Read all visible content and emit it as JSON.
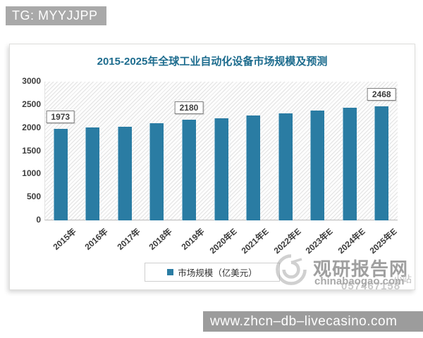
{
  "badge": {
    "text": "TG: MYYJJPP"
  },
  "chart_data": {
    "type": "bar",
    "title": "2015-2025年全球工业自动化设备市场规模及预测",
    "categories": [
      "2015年",
      "2016年",
      "2017年",
      "2018年",
      "2019年",
      "2020年E",
      "2021年E",
      "2022年E",
      "2023年E",
      "2024年E",
      "2025年E"
    ],
    "values": [
      1973,
      2005,
      2025,
      2100,
      2180,
      2210,
      2265,
      2310,
      2370,
      2440,
      2468
    ],
    "data_labels": [
      {
        "index": 0,
        "text": "1973"
      },
      {
        "index": 4,
        "text": "2180"
      },
      {
        "index": 10,
        "text": "2468"
      }
    ],
    "xlabel": "",
    "ylabel": "",
    "ylim": [
      0,
      3000
    ],
    "ytick_step": 500,
    "grid": false,
    "legend_position": "bottom",
    "legend": [
      {
        "label": "市场规模（亿美元）",
        "color": "#2a7ca3"
      }
    ],
    "bar_color": "#2a7ca3",
    "plot_background": "diagonal-hatch"
  },
  "watermark": {
    "brand": "观研报告网",
    "domain": "chinabaogao.com",
    "overlay_digits": "057467158",
    "overlay_text": "小站"
  },
  "footer": {
    "url": "www.zhcn–db–livecasino.com"
  },
  "colors": {
    "bar": "#2a7ca3",
    "title": "#1d6c8e",
    "badge_bg": "#a9a9a9",
    "footer_bg": "#9c9c9c"
  }
}
